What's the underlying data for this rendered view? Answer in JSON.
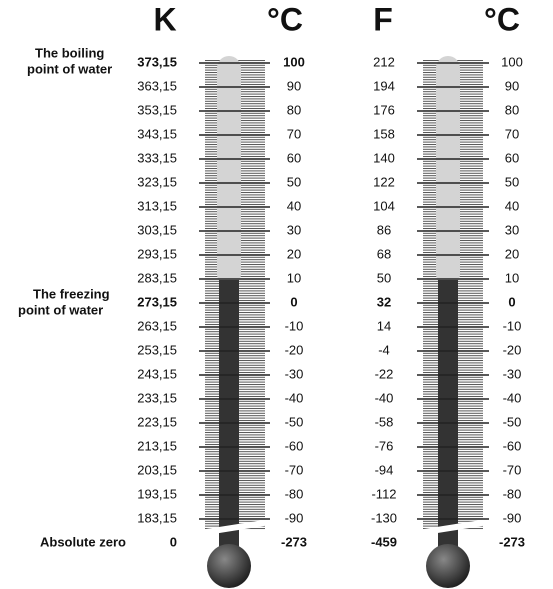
{
  "headers": [
    "K",
    "°C",
    "F",
    "°C"
  ],
  "annotations": {
    "boiling": [
      "The boiling",
      "point of water"
    ],
    "freezing": [
      "The freezing",
      "point  of water"
    ],
    "absolute_zero": "Absolute zero"
  },
  "scales": {
    "kelvin": [
      "373,15",
      "363,15",
      "353,15",
      "343,15",
      "333,15",
      "323,15",
      "313,15",
      "303,15",
      "293,15",
      "283,15",
      "273,15",
      "263,15",
      "253,15",
      "243,15",
      "233,15",
      "223,15",
      "213,15",
      "203,15",
      "193,15",
      "183,15",
      "0"
    ],
    "celsius": [
      "100",
      "90",
      "80",
      "70",
      "60",
      "50",
      "40",
      "30",
      "20",
      "10",
      "0",
      "-10",
      "-20",
      "-30",
      "-40",
      "-50",
      "-60",
      "-70",
      "-80",
      "-90",
      "-273"
    ],
    "fahrenheit": [
      "212",
      "194",
      "176",
      "158",
      "140",
      "122",
      "104",
      "86",
      "68",
      "50",
      "32",
      "14",
      "-4",
      "-22",
      "-40",
      "-58",
      "-76",
      "-94",
      "-112",
      "-130",
      "-459"
    ]
  }
}
